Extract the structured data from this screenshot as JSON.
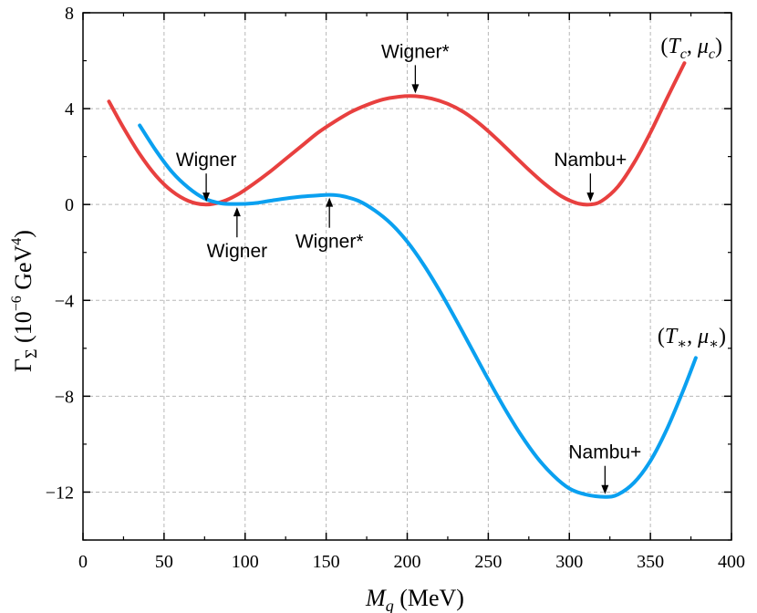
{
  "chart_data": {
    "type": "line",
    "title": "",
    "xlabel": "M_q (MeV)",
    "ylabel": "Γ_Σ (10^-6 GeV^4)",
    "xlim": [
      0,
      400
    ],
    "ylim": [
      -14,
      8
    ],
    "xticks": [
      0,
      50,
      100,
      150,
      200,
      250,
      300,
      350,
      400
    ],
    "yticks": [
      -12,
      -8,
      -4,
      0,
      4,
      8
    ],
    "xtick_labels": [
      "0",
      "50",
      "100",
      "150",
      "200",
      "250",
      "300",
      "350",
      "400"
    ],
    "ytick_labels": [
      "-12",
      "-8",
      "-4",
      "0",
      "4",
      "8"
    ],
    "grid": true,
    "series": [
      {
        "name": "(T_c, μ_c)",
        "color": "#e8403f",
        "x": [
          16,
          25,
          35,
          45,
          55,
          65,
          75,
          85,
          95,
          105,
          115,
          125,
          135,
          145,
          155,
          165,
          175,
          185,
          195,
          205,
          215,
          225,
          235,
          245,
          255,
          265,
          275,
          285,
          295,
          305,
          313,
          320,
          330,
          340,
          350,
          360,
          371
        ],
        "y": [
          4.3,
          3.2,
          2.1,
          1.2,
          0.55,
          0.15,
          0.0,
          0.1,
          0.4,
          0.85,
          1.35,
          1.9,
          2.45,
          3.0,
          3.45,
          3.85,
          4.15,
          4.38,
          4.5,
          4.52,
          4.42,
          4.2,
          3.85,
          3.35,
          2.75,
          2.1,
          1.45,
          0.85,
          0.35,
          0.05,
          0.0,
          0.15,
          0.75,
          1.75,
          3.0,
          4.4,
          5.9
        ]
      },
      {
        "name": "(T_*, μ_*)",
        "color": "#0aa0f0",
        "x": [
          35,
          45,
          55,
          65,
          75,
          85,
          95,
          105,
          115,
          125,
          135,
          145,
          152,
          160,
          170,
          180,
          190,
          200,
          210,
          220,
          230,
          240,
          250,
          260,
          270,
          280,
          290,
          300,
          310,
          322,
          330,
          340,
          350,
          360,
          370,
          378
        ],
        "y": [
          3.3,
          2.25,
          1.35,
          0.7,
          0.25,
          0.05,
          0.02,
          0.05,
          0.15,
          0.25,
          0.33,
          0.38,
          0.4,
          0.35,
          0.15,
          -0.25,
          -0.8,
          -1.55,
          -2.5,
          -3.6,
          -4.8,
          -6.05,
          -7.3,
          -8.5,
          -9.6,
          -10.55,
          -11.3,
          -11.85,
          -12.1,
          -12.2,
          -12.1,
          -11.6,
          -10.7,
          -9.4,
          -7.8,
          -6.4
        ]
      }
    ],
    "series_labels": {
      "red": "(T_c, μ_c)",
      "blue": "(T_*, μ_*)"
    },
    "annotations": [
      {
        "text": "Wigner",
        "x": 76,
        "y": 0.0,
        "side": "above"
      },
      {
        "text": "Wigner",
        "x": 95,
        "y": 0.0,
        "side": "below"
      },
      {
        "text": "Wigner*",
        "x": 152,
        "y": 0.4,
        "side": "below"
      },
      {
        "text": "Wigner*",
        "x": 205,
        "y": 4.52,
        "side": "above"
      },
      {
        "text": "Nambu+",
        "x": 313,
        "y": 0.0,
        "side": "above"
      },
      {
        "text": "Nambu+",
        "x": 322,
        "y": -12.2,
        "side": "above"
      }
    ]
  }
}
